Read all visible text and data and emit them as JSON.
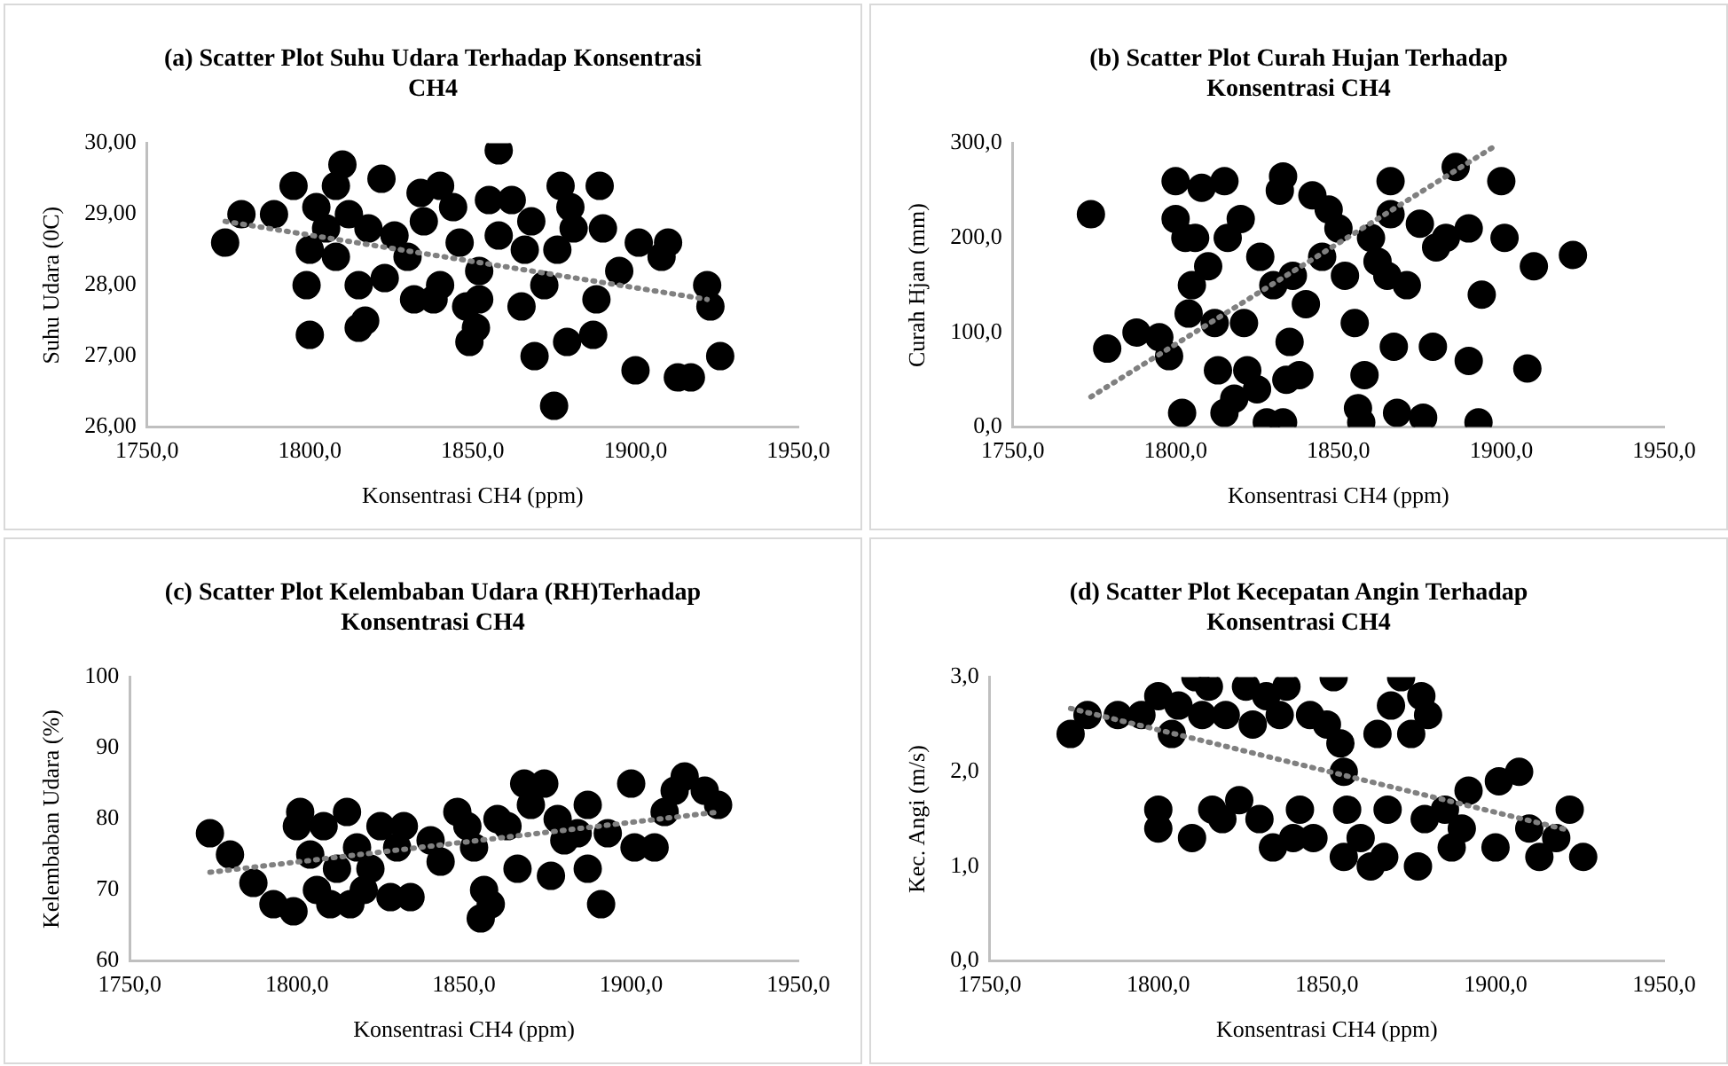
{
  "chart_data": [
    {
      "type": "scatter",
      "title": "(a) Scatter Plot Suhu Udara Terhadap Konsentrasi CH4",
      "xlabel": "Konsentrasi CH4 (ppm)",
      "ylabel": "Suhu Udara (0C)",
      "xlim": [
        1750,
        1950
      ],
      "xticks": [
        {
          "value": 1750,
          "label": "1750,0"
        },
        {
          "value": 1800,
          "label": "1800,0"
        },
        {
          "value": 1850,
          "label": "1850,0"
        },
        {
          "value": 1900,
          "label": "1900,0"
        },
        {
          "value": 1950,
          "label": "1950,0"
        }
      ],
      "ylim": [
        26,
        30
      ],
      "yticks": [
        {
          "value": 26,
          "label": "26,00"
        },
        {
          "value": 27,
          "label": "27,00"
        },
        {
          "value": 28,
          "label": "28,00"
        },
        {
          "value": 29,
          "label": "29,00"
        },
        {
          "value": 30,
          "label": "30,00"
        }
      ],
      "grid": false,
      "legend": false,
      "marker": "circle",
      "series": [
        {
          "color": "#000000",
          "x": [
            1774,
            1779,
            1789,
            1795,
            1800,
            1799,
            1800,
            1802,
            1805,
            1808,
            1810,
            1808,
            1812,
            1815,
            1817,
            1815,
            1818,
            1822,
            1823,
            1826,
            1830,
            1832,
            1834,
            1835,
            1838,
            1840,
            1840,
            1844,
            1846,
            1848,
            1849,
            1851,
            1852,
            1852,
            1855,
            1858,
            1858,
            1862,
            1865,
            1866,
            1868,
            1869,
            1872,
            1875,
            1876,
            1877,
            1879,
            1880,
            1881,
            1887,
            1888,
            1889,
            1890,
            1895,
            1900,
            1901,
            1908,
            1910,
            1913,
            1917,
            1922,
            1923,
            1926
          ],
          "values": [
            28.6,
            29.0,
            29.0,
            29.4,
            27.3,
            28.0,
            28.5,
            29.1,
            28.8,
            29.4,
            29.7,
            28.4,
            29.0,
            27.4,
            27.5,
            28.0,
            28.8,
            29.5,
            28.1,
            28.7,
            28.4,
            27.8,
            29.3,
            28.9,
            27.8,
            29.4,
            28.0,
            29.1,
            28.6,
            27.7,
            27.2,
            27.4,
            27.8,
            28.2,
            29.2,
            29.9,
            28.7,
            29.2,
            27.7,
            28.5,
            28.9,
            27.0,
            28.0,
            26.3,
            28.5,
            29.4,
            27.2,
            29.1,
            28.8,
            27.3,
            27.8,
            29.4,
            28.8,
            28.2,
            26.8,
            28.6,
            28.4,
            28.6,
            26.7,
            26.7,
            28.0,
            27.7,
            27.0
          ]
        },
        {
          "type": "line",
          "color": "#808080",
          "line_style": "dotted",
          "marker": "none",
          "x": [
            1774,
            1922
          ],
          "values": [
            28.9,
            27.8
          ]
        }
      ]
    },
    {
      "type": "scatter",
      "title": "(b) Scatter Plot Curah Hujan Terhadap Konsentrasi CH4",
      "xlabel": "Konsentrasi CH4 (ppm)",
      "ylabel": "Curah Hjan (mm)",
      "xlim": [
        1750,
        1950
      ],
      "xticks": [
        {
          "value": 1750,
          "label": "1750,0"
        },
        {
          "value": 1800,
          "label": "1800,0"
        },
        {
          "value": 1850,
          "label": "1850,0"
        },
        {
          "value": 1900,
          "label": "1900,0"
        },
        {
          "value": 1950,
          "label": "1950,0"
        }
      ],
      "ylim": [
        0,
        300
      ],
      "yticks": [
        {
          "value": 0,
          "label": "0,0"
        },
        {
          "value": 100,
          "label": "100,0"
        },
        {
          "value": 200,
          "label": "200,0"
        },
        {
          "value": 300,
          "label": "300,0"
        }
      ],
      "grid": false,
      "legend": false,
      "marker": "circle",
      "series": [
        {
          "color": "#000000",
          "x": [
            1774,
            1779,
            1788,
            1795,
            1798,
            1800,
            1800,
            1802,
            1803,
            1804,
            1805,
            1806,
            1808,
            1810,
            1812,
            1813,
            1815,
            1815,
            1816,
            1818,
            1820,
            1821,
            1822,
            1825,
            1826,
            1828,
            1830,
            1832,
            1833,
            1833,
            1834,
            1835,
            1836,
            1838,
            1840,
            1842,
            1845,
            1847,
            1850,
            1852,
            1855,
            1856,
            1857,
            1858,
            1860,
            1862,
            1865,
            1866,
            1866,
            1867,
            1868,
            1871,
            1875,
            1876,
            1879,
            1880,
            1883,
            1886,
            1890,
            1890,
            1893,
            1894,
            1900,
            1901,
            1908,
            1910,
            1922
          ],
          "values": [
            225,
            83,
            100,
            95,
            75,
            260,
            220,
            15,
            200,
            120,
            150,
            200,
            253,
            170,
            110,
            60,
            260,
            15,
            200,
            30,
            220,
            110,
            60,
            40,
            180,
            5,
            150,
            250,
            265,
            5,
            50,
            90,
            160,
            55,
            130,
            245,
            180,
            230,
            210,
            160,
            110,
            20,
            5,
            55,
            200,
            175,
            160,
            260,
            225,
            85,
            15,
            150,
            215,
            10,
            85,
            190,
            200,
            275,
            70,
            210,
            5,
            140,
            260,
            200,
            62,
            170,
            182
          ]
        },
        {
          "type": "line",
          "color": "#808080",
          "line_style": "dotted",
          "marker": "none",
          "x": [
            1774,
            1898
          ],
          "values": [
            32,
            297
          ]
        }
      ]
    },
    {
      "type": "scatter",
      "title": "(c) Scatter Plot Kelembaban Udara (RH)Terhadap Konsentrasi CH4",
      "xlabel": "Konsentrasi CH4 (ppm)",
      "ylabel": "Kelembaban Udara (%)",
      "xlim": [
        1750,
        1950
      ],
      "xticks": [
        {
          "value": 1750,
          "label": "1750,0"
        },
        {
          "value": 1800,
          "label": "1800,0"
        },
        {
          "value": 1850,
          "label": "1850,0"
        },
        {
          "value": 1900,
          "label": "1900,0"
        },
        {
          "value": 1950,
          "label": "1950,0"
        }
      ],
      "ylim": [
        60,
        100
      ],
      "yticks": [
        60,
        70,
        80,
        90,
        100
      ],
      "grid": false,
      "legend": false,
      "marker": "circle",
      "series": [
        {
          "color": "#000000",
          "x": [
            1774,
            1780,
            1787,
            1793,
            1799,
            1800,
            1801,
            1804,
            1806,
            1808,
            1810,
            1812,
            1815,
            1816,
            1818,
            1820,
            1822,
            1825,
            1828,
            1830,
            1832,
            1834,
            1840,
            1843,
            1846,
            1848,
            1851,
            1853,
            1855,
            1856,
            1858,
            1860,
            1863,
            1866,
            1868,
            1870,
            1874,
            1876,
            1878,
            1880,
            1884,
            1887,
            1887,
            1891,
            1893,
            1900,
            1901,
            1907,
            1910,
            1913,
            1916,
            1920,
            1922,
            1926
          ],
          "values": [
            78,
            75,
            71,
            68,
            67,
            79,
            81,
            75,
            70,
            79,
            68,
            73,
            81,
            68,
            76,
            70,
            73,
            79,
            69,
            76,
            79,
            69,
            77,
            74,
            null,
            81,
            79,
            76,
            66,
            70,
            68,
            80,
            79,
            73,
            85,
            82,
            85,
            72,
            80,
            77,
            78,
            82,
            73,
            68,
            78,
            85,
            76,
            76,
            81,
            84,
            86,
            null,
            84,
            82
          ]
        },
        {
          "type": "line",
          "color": "#808080",
          "line_style": "dotted",
          "marker": "none",
          "x": [
            1774,
            1926
          ],
          "values": [
            72.5,
            81
          ]
        }
      ]
    },
    {
      "type": "scatter",
      "title": "(d) Scatter Plot Kecepatan Angin Terhadap Konsentrasi CH4",
      "xlabel": "Konsentrasi CH4 (ppm)",
      "ylabel": "Kec. Angi (m/s)",
      "xlim": [
        1750,
        1950
      ],
      "xticks": [
        {
          "value": 1750,
          "label": "1750,0"
        },
        {
          "value": 1800,
          "label": "1800,0"
        },
        {
          "value": 1850,
          "label": "1850,0"
        },
        {
          "value": 1900,
          "label": "1900,0"
        },
        {
          "value": 1950,
          "label": "1950,0"
        }
      ],
      "ylim": [
        0,
        3
      ],
      "yticks": [
        {
          "value": 0,
          "label": "0,0"
        },
        {
          "value": 1,
          "label": "1,0"
        },
        {
          "value": 2,
          "label": "2,0"
        },
        {
          "value": 3,
          "label": "3,0"
        }
      ],
      "grid": false,
      "legend": false,
      "marker": "circle",
      "series": [
        {
          "color": "#000000",
          "x": [
            1774,
            1779,
            1788,
            1795,
            1800,
            1800,
            1800,
            1804,
            1806,
            1810,
            1811,
            1813,
            1815,
            1816,
            1819,
            1820,
            1824,
            1826,
            1828,
            1830,
            1832,
            1834,
            1836,
            1838,
            1840,
            1842,
            1845,
            1846,
            1850,
            1852,
            1854,
            1855,
            1855,
            1856,
            1860,
            1863,
            1865,
            1867,
            1868,
            1869,
            1872,
            1875,
            1877,
            1878,
            1880,
            1879,
            1885,
            1887,
            1890,
            1892,
            1900,
            1901,
            1907,
            1910,
            1913,
            1918,
            1922,
            1926
          ],
          "values": [
            2.4,
            2.6,
            2.6,
            2.6,
            1.6,
            1.4,
            2.8,
            2.4,
            2.7,
            1.3,
            3.0,
            2.6,
            2.9,
            1.6,
            1.5,
            2.6,
            1.7,
            2.9,
            2.5,
            1.5,
            2.8,
            1.2,
            2.6,
            2.9,
            1.3,
            1.6,
            2.6,
            1.3,
            2.5,
            3.0,
            2.3,
            2.0,
            1.1,
            1.6,
            1.3,
            1.0,
            2.4,
            1.1,
            1.6,
            2.7,
            3.0,
            2.4,
            1.0,
            2.8,
            2.6,
            1.5,
            1.6,
            1.2,
            1.4,
            1.8,
            1.2,
            1.9,
            2.0,
            1.4,
            1.1,
            1.3,
            1.6,
            1.1
          ]
        },
        {
          "type": "line",
          "color": "#808080",
          "line_style": "dotted",
          "marker": "none",
          "x": [
            1774,
            1922
          ],
          "values": [
            2.67,
            1.38
          ]
        }
      ]
    }
  ]
}
